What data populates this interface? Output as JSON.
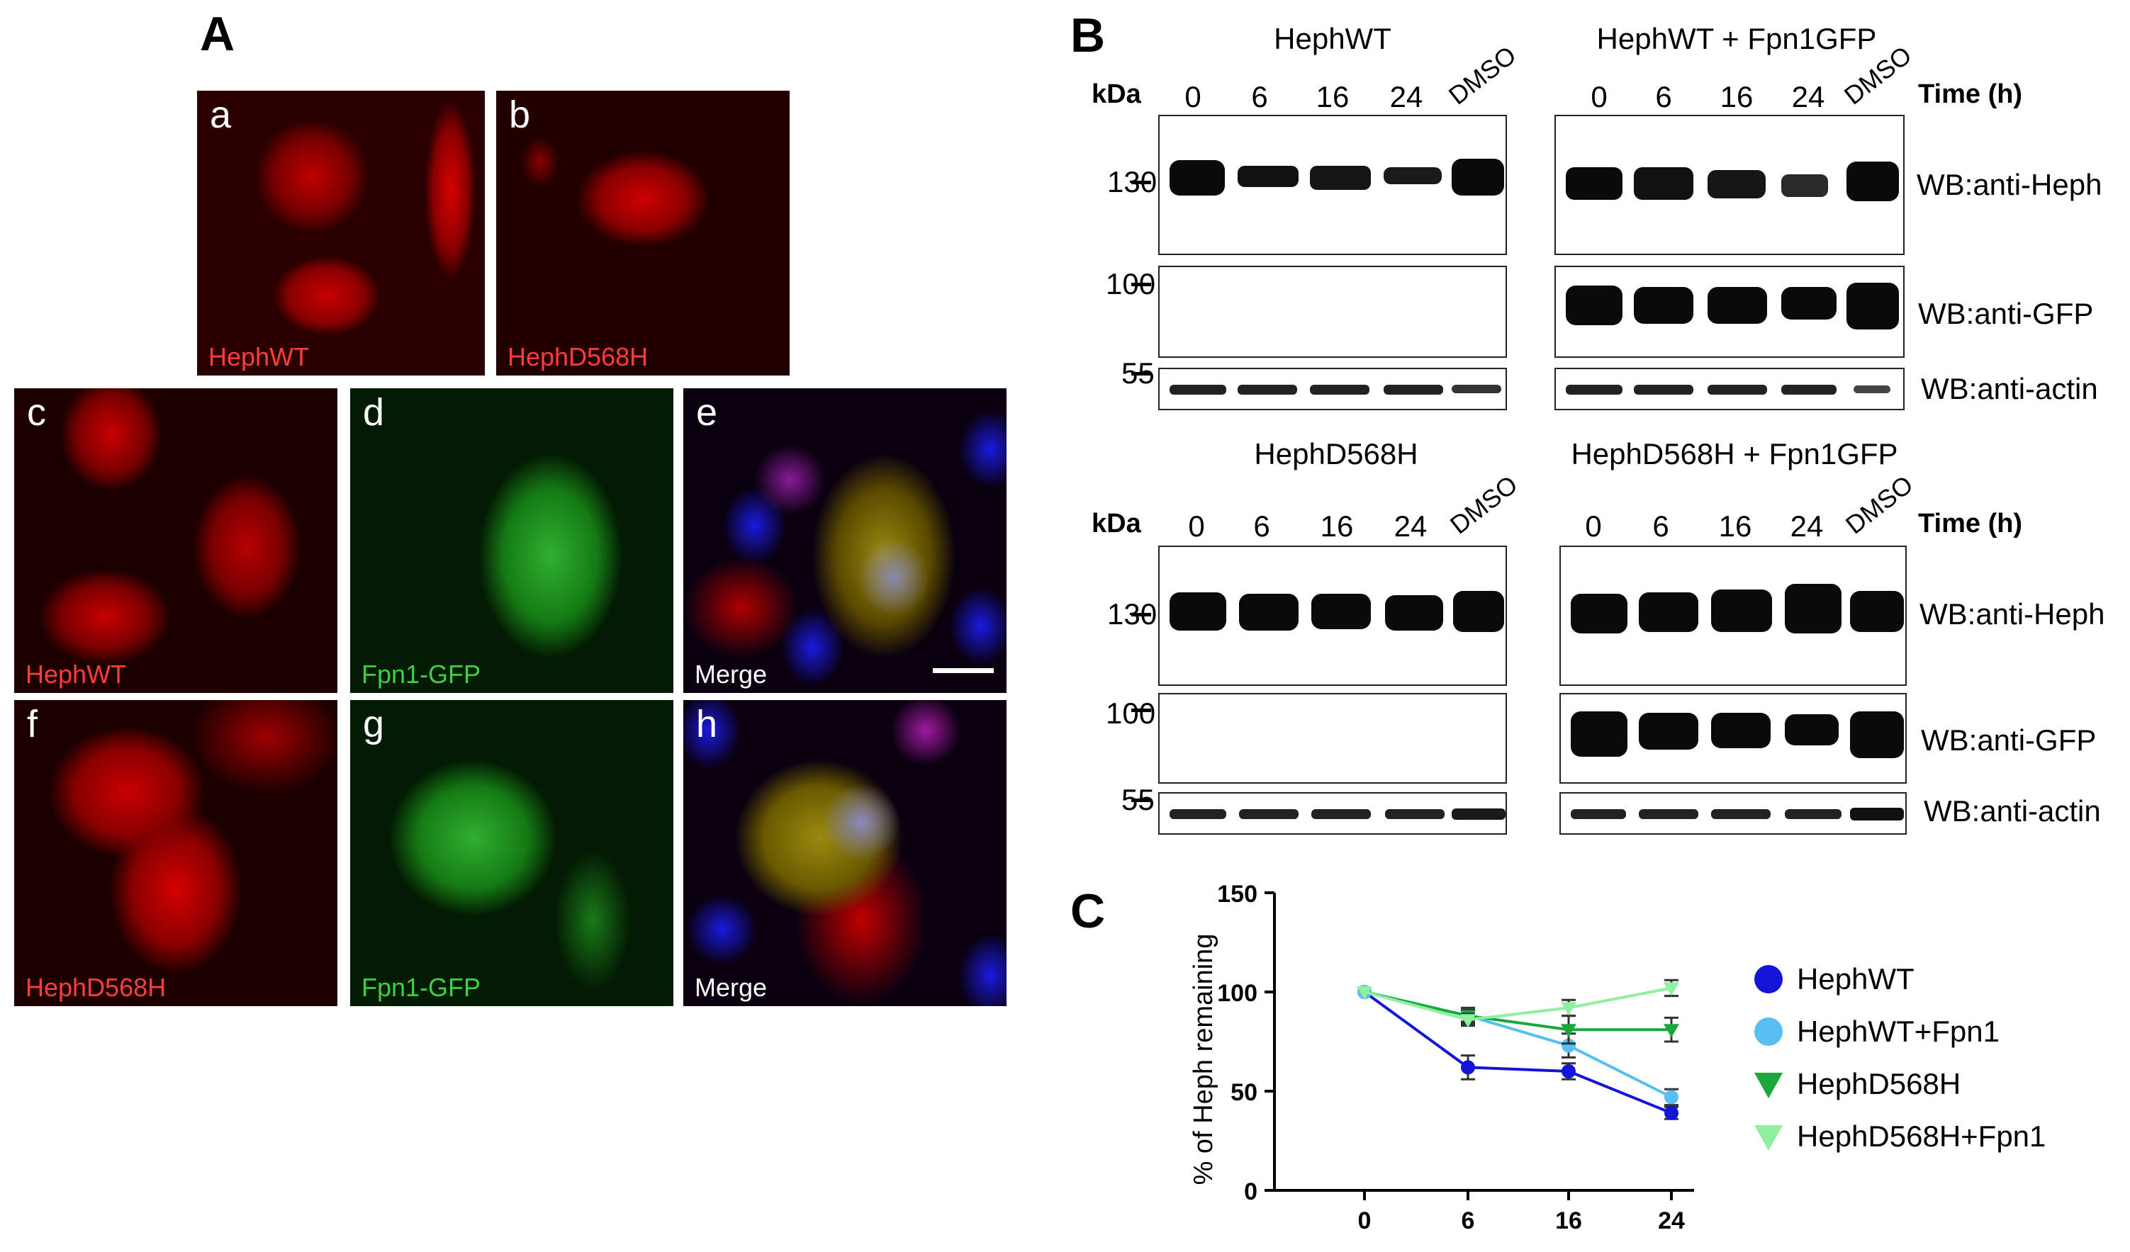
{
  "panel_labels": {
    "A": "A",
    "B": "B",
    "C": "C"
  },
  "panel_a": {
    "row1": [
      {
        "letter": "a",
        "caption": "HephWT"
      },
      {
        "letter": "b",
        "caption": "HephD568H"
      }
    ],
    "row2": [
      {
        "letter": "c",
        "caption": "HephWT"
      },
      {
        "letter": "d",
        "caption": "Fpn1-GFP"
      },
      {
        "letter": "e",
        "caption": "Merge"
      }
    ],
    "row3": [
      {
        "letter": "f",
        "caption": "HephD568H"
      },
      {
        "letter": "g",
        "caption": "Fpn1-GFP"
      },
      {
        "letter": "h",
        "caption": "Merge"
      }
    ]
  },
  "panel_b": {
    "kda_label": "kDa",
    "time_label": "Time (h)",
    "lanes": [
      "0",
      "6",
      "16",
      "24",
      "DMSO"
    ],
    "mw_markers": [
      "130",
      "100",
      "55"
    ],
    "row_labels": [
      "WB:anti-Heph",
      "WB:anti-GFP",
      "WB:anti-actin"
    ],
    "groups": [
      "HephWT",
      "HephWT + Fpn1GFP",
      "HephD568H",
      "HephD568H + Fpn1GFP"
    ]
  },
  "colors": {
    "heph_wt": "#1414d9",
    "heph_wt_fpn1": "#59bff0",
    "heph_d568h": "#19a83a",
    "heph_d568h_fpn1": "#8ff0a0"
  },
  "chart_data": {
    "type": "line",
    "title": "",
    "xlabel": "",
    "ylabel": "% of Heph remaining",
    "x": [
      0,
      6,
      16,
      24
    ],
    "x_ticks": [
      "0",
      "6",
      "16",
      "24"
    ],
    "ylim": [
      0,
      150
    ],
    "y_ticks": [
      "0",
      "50",
      "100",
      "150"
    ],
    "legend_position": "right",
    "series": [
      {
        "name": "HephWT",
        "marker": "circle",
        "values": [
          100,
          62,
          60,
          39
        ],
        "errors": [
          0,
          6,
          4,
          3
        ]
      },
      {
        "name": "HephWT+Fpn1",
        "marker": "circle",
        "values": [
          100,
          88,
          73,
          47
        ],
        "errors": [
          0,
          4,
          6,
          4
        ]
      },
      {
        "name": "HephD568H",
        "marker": "triangle-down",
        "values": [
          100,
          88,
          81,
          81
        ],
        "errors": [
          0,
          3,
          7,
          6
        ]
      },
      {
        "name": "HephD568H+Fpn1",
        "marker": "triangle-down",
        "values": [
          100,
          86,
          92,
          102
        ],
        "errors": [
          0,
          3,
          4,
          4
        ]
      }
    ]
  }
}
